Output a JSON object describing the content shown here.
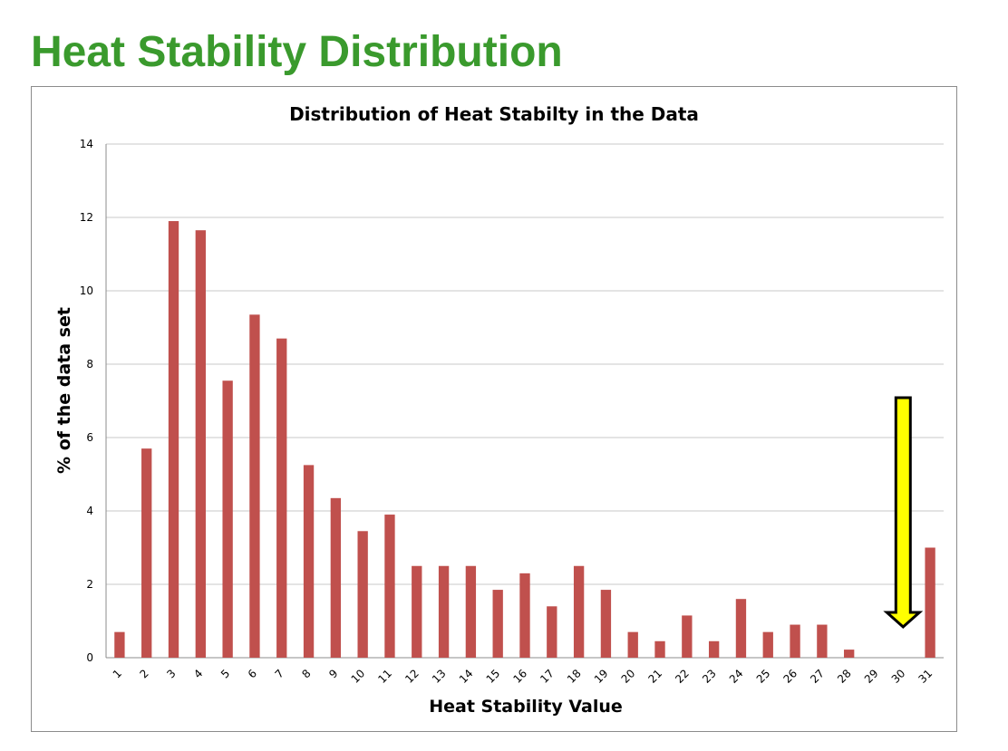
{
  "page": {
    "title": "Heat Stability Distribution"
  },
  "colors": {
    "title": "#3a9a2d",
    "bar": "#c0504d",
    "grid": "#c8c8c8",
    "arrow_fill": "#ffff00",
    "arrow_stroke": "#000000"
  },
  "annotation": {
    "type": "down-arrow",
    "category": "30",
    "color": "#ffff00"
  },
  "chart_data": {
    "type": "bar",
    "title": "Distribution of Heat Stabilty in the Data",
    "xlabel": "Heat Stability Value",
    "ylabel": "% of the data set",
    "ylim": [
      0,
      14
    ],
    "yticks": [
      0,
      2,
      4,
      6,
      8,
      10,
      12,
      14
    ],
    "grid": true,
    "legend": "none",
    "categories": [
      "1",
      "2",
      "3",
      "4",
      "5",
      "6",
      "7",
      "8",
      "9",
      "10",
      "11",
      "12",
      "13",
      "14",
      "15",
      "16",
      "17",
      "18",
      "19",
      "20",
      "21",
      "22",
      "23",
      "24",
      "25",
      "26",
      "27",
      "28",
      "29",
      "30",
      "31"
    ],
    "values": [
      0.7,
      5.7,
      11.9,
      11.65,
      7.55,
      9.35,
      8.7,
      5.25,
      4.35,
      3.45,
      3.9,
      2.5,
      2.5,
      2.5,
      1.85,
      2.3,
      1.4,
      2.5,
      1.85,
      0.7,
      0.45,
      1.15,
      0.45,
      1.6,
      0.7,
      0.9,
      0.9,
      0.22,
      0,
      0,
      3.0
    ]
  }
}
